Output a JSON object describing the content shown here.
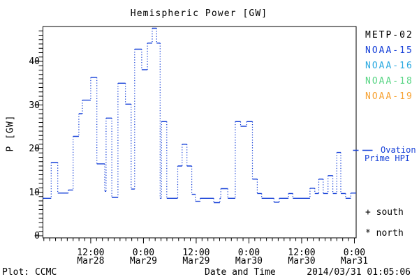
{
  "chart_data": {
    "type": "line",
    "subtype": "step-plot, solid horizontal segments with dotted vertical transitions",
    "title": "Hemispheric Power [GW]",
    "xlabel": "Date and Time",
    "ylabel": "P [GW]",
    "ylim": [
      0,
      48
    ],
    "y_major_ticks": [
      0,
      10,
      20,
      30,
      40
    ],
    "y_minor_step_gw": 1,
    "grid": false,
    "x_axis_hours_domain": [
      1.13,
      72.4
    ],
    "x_major_hours": [
      12,
      24,
      36,
      48,
      60,
      72
    ],
    "x_minor_step_hours": 1.3333,
    "x_tick_labels": [
      {
        "time": "12:00",
        "date": "Mar28"
      },
      {
        "time": "0:00",
        "date": "Mar29"
      },
      {
        "time": "12:00",
        "date": "Mar29"
      },
      {
        "time": "0:00",
        "date": "Mar30"
      },
      {
        "time": "12:00",
        "date": "Mar30"
      },
      {
        "time": "0:00",
        "date": "Mar31"
      }
    ],
    "line_color": "#1640d8",
    "frame_color": "#000000",
    "series": [
      {
        "name": "Ovation Prime HPI",
        "color": "#1640d8",
        "units": "GW",
        "steps_hour_value": [
          [
            1.13,
            8.6
          ],
          [
            3.0,
            16.8
          ],
          [
            4.5,
            9.8
          ],
          [
            6.9,
            10.5
          ],
          [
            8.0,
            22.8
          ],
          [
            9.3,
            28.0
          ],
          [
            10.1,
            31.1
          ],
          [
            12.0,
            36.3
          ],
          [
            13.4,
            16.5
          ],
          [
            15.2,
            10.2
          ],
          [
            15.5,
            27.0
          ],
          [
            16.8,
            8.8
          ],
          [
            18.2,
            35.0
          ],
          [
            19.9,
            30.2
          ],
          [
            21.2,
            10.7
          ],
          [
            22.0,
            42.8
          ],
          [
            23.6,
            38.1
          ],
          [
            24.9,
            44.2
          ],
          [
            26.0,
            47.6
          ],
          [
            27.0,
            44.2
          ],
          [
            27.8,
            8.6
          ],
          [
            28.1,
            26.2
          ],
          [
            29.3,
            8.6
          ],
          [
            31.8,
            16.0
          ],
          [
            32.8,
            21.0
          ],
          [
            33.9,
            16.0
          ],
          [
            35.0,
            9.5
          ],
          [
            35.8,
            7.9
          ],
          [
            36.9,
            8.6
          ],
          [
            40.0,
            7.6
          ],
          [
            41.4,
            8.6
          ],
          [
            41.6,
            10.8
          ],
          [
            43.2,
            8.6
          ],
          [
            44.9,
            26.2
          ],
          [
            46.1,
            25.1
          ],
          [
            47.5,
            26.2
          ],
          [
            48.8,
            13.0
          ],
          [
            49.9,
            9.7
          ],
          [
            50.9,
            8.6
          ],
          [
            53.7,
            7.7
          ],
          [
            54.9,
            8.6
          ],
          [
            57.0,
            9.7
          ],
          [
            58.0,
            8.6
          ],
          [
            61.9,
            10.9
          ],
          [
            63.0,
            9.7
          ],
          [
            63.9,
            13.0
          ],
          [
            64.9,
            9.7
          ],
          [
            66.0,
            13.8
          ],
          [
            67.1,
            9.7
          ],
          [
            68.0,
            19.1
          ],
          [
            68.9,
            9.7
          ],
          [
            70.0,
            8.6
          ],
          [
            71.2,
            9.8
          ]
        ],
        "end_hour": 72.4,
        "hours_reference": "hours after 2014-03-28 00:00"
      }
    ],
    "legend": [
      {
        "label": "METP-02",
        "color": "#000000"
      },
      {
        "label": "NOAA-15",
        "color": "#1640d8"
      },
      {
        "label": "NOAA-16",
        "color": "#2aa9e0"
      },
      {
        "label": "NOAA-18",
        "color": "#58d584"
      },
      {
        "label": "NOAA-19",
        "color": "#f7a233"
      }
    ],
    "legend_position": "right outside",
    "annotations": {
      "line_key_dash": "—",
      "line_key_line1": "Ovation",
      "line_key_line2": "Prime HPI",
      "marker_south_symbol": "+",
      "marker_south_label": "south",
      "marker_north_symbol": "*",
      "marker_north_label": "north"
    }
  },
  "footer": {
    "left": "Plot: CCMC",
    "right": "2014/03/31 01:05:06"
  }
}
